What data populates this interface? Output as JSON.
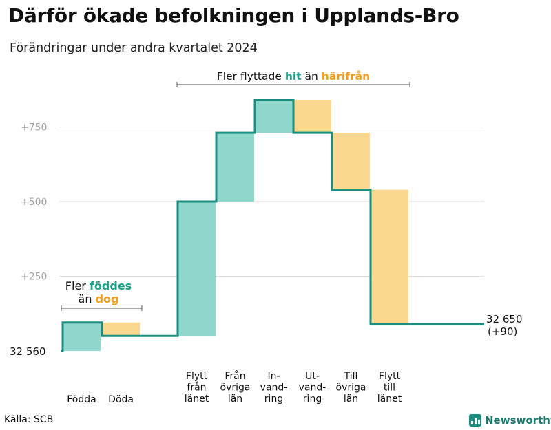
{
  "title": "Därför ökade befolkningen i Upplands-Bro",
  "subtitle": "Förändringar under andra kvartalet 2024",
  "source": "Källa: SCB",
  "brand": "Newsworthy",
  "colors": {
    "positive": "#8fd6cc",
    "negative": "#fad88f",
    "line": "#1a8f7f",
    "green_text": "#22a08c",
    "orange_text": "#f0a01e",
    "grid": "#dddddd",
    "tick": "#a3a3a3"
  },
  "annotations": {
    "top": {
      "prefix": "Fler flyttade",
      "hit": "hit",
      "mid": "än",
      "harifran": "härifrån"
    },
    "left": {
      "prefix": "Fler",
      "fodda": "föddes",
      "mid": "än",
      "dog": "dog"
    }
  },
  "chart_data": {
    "type": "waterfall",
    "start": {
      "label": "32  560",
      "value": 0
    },
    "end": {
      "label": "32 650",
      "sub_label": "(+90)",
      "value": 90
    },
    "ylim": [
      0,
      900
    ],
    "yticks": [
      {
        "value": 250,
        "label": "+250"
      },
      {
        "value": 500,
        "label": "+500"
      },
      {
        "value": 750,
        "label": "+750"
      }
    ],
    "steps": [
      {
        "label": [
          "Födda"
        ],
        "change": 95,
        "kind": "positive"
      },
      {
        "label": [
          "Döda"
        ],
        "change": -45,
        "kind": "negative"
      },
      {
        "label": [
          "Flytt",
          "från",
          "länet"
        ],
        "change": 450,
        "kind": "positive"
      },
      {
        "label": [
          "Från",
          "övriga",
          "län"
        ],
        "change": 230,
        "kind": "positive"
      },
      {
        "label": [
          "In-",
          "vand-",
          "ring"
        ],
        "change": 110,
        "kind": "positive"
      },
      {
        "label": [
          "Ut-",
          "vand-",
          "ring"
        ],
        "change": -110,
        "kind": "negative"
      },
      {
        "label": [
          "Till",
          "övriga",
          "län"
        ],
        "change": -190,
        "kind": "negative"
      },
      {
        "label": [
          "Flytt",
          "till",
          "länet"
        ],
        "change": -450,
        "kind": "negative"
      }
    ]
  }
}
